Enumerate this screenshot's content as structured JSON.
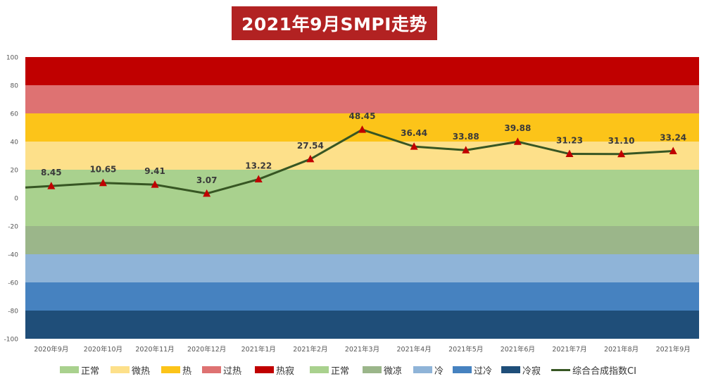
{
  "chart_data": {
    "type": "line",
    "title": "2021年9月SMPI走势",
    "categories": [
      "2020年9月",
      "2020年10月",
      "2020年11月",
      "2020年12月",
      "2021年1月",
      "2021年2月",
      "2021年3月",
      "2021年4月",
      "2021年5月",
      "2021年6月",
      "2021年7月",
      "2021年8月",
      "2021年9月"
    ],
    "series": [
      {
        "name": "综合合成指数CI",
        "values": [
          8.45,
          10.65,
          9.41,
          3.07,
          13.22,
          27.54,
          48.45,
          36.44,
          33.88,
          39.88,
          31.23,
          31.1,
          33.24
        ],
        "color": "#375623",
        "marker_color": "#c00000"
      }
    ],
    "value_labels": [
      "8.45",
      "10.65",
      "9.41",
      "3.07",
      "13.22",
      "27.54",
      "48.45",
      "36.44",
      "33.88",
      "39.88",
      "31.23",
      "31.10",
      "33.24"
    ],
    "yticks": [
      "100",
      "80",
      "60",
      "40",
      "20",
      "0",
      "-20",
      "-40",
      "-60",
      "-80",
      "-100"
    ],
    "ylim": [
      -100,
      100
    ],
    "grid": false,
    "bands": [
      {
        "from": 80,
        "to": 100,
        "color": "#c00000"
      },
      {
        "from": 60,
        "to": 80,
        "color": "#de7272"
      },
      {
        "from": 40,
        "to": 60,
        "color": "#fcc419"
      },
      {
        "from": 20,
        "to": 40,
        "color": "#fde08a"
      },
      {
        "from": 0,
        "to": 20,
        "color": "#a9d18e"
      },
      {
        "from": -20,
        "to": 0,
        "color": "#a9d18e"
      },
      {
        "from": -40,
        "to": -20,
        "color": "#9bb68a"
      },
      {
        "from": -60,
        "to": -40,
        "color": "#8fb4d8"
      },
      {
        "from": -80,
        "to": -60,
        "color": "#4682c0"
      },
      {
        "from": -100,
        "to": -80,
        "color": "#1f4e79"
      }
    ],
    "legend_position": "bottom",
    "legend": [
      {
        "label": "正常",
        "color": "#a9d18e",
        "kind": "swatch"
      },
      {
        "label": "微热",
        "color": "#fde08a",
        "kind": "swatch"
      },
      {
        "label": "热",
        "color": "#fcc419",
        "kind": "swatch"
      },
      {
        "label": "过热",
        "color": "#de7272",
        "kind": "swatch"
      },
      {
        "label": "热寂",
        "color": "#c00000",
        "kind": "swatch"
      },
      {
        "label": "正常",
        "color": "#a9d18e",
        "kind": "swatch"
      },
      {
        "label": "微凉",
        "color": "#9bb68a",
        "kind": "swatch"
      },
      {
        "label": "冷",
        "color": "#8fb4d8",
        "kind": "swatch"
      },
      {
        "label": "过冷",
        "color": "#4682c0",
        "kind": "swatch"
      },
      {
        "label": "冷寂",
        "color": "#1f4e79",
        "kind": "swatch"
      },
      {
        "label": "综合合成指数CI",
        "color": "#375623",
        "kind": "line"
      }
    ]
  }
}
